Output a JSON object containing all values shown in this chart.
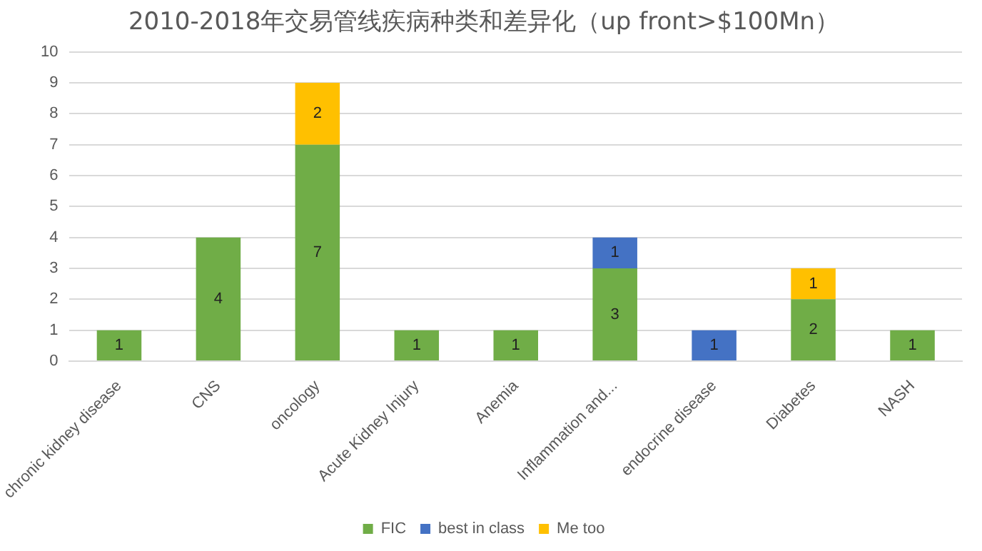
{
  "chart_data": {
    "type": "bar",
    "title": "2010-2018年交易管线疾病种类和差异化（up front>$100Mn）",
    "categories": [
      "chronic kidney disease",
      "CNS",
      "oncology",
      "Acute Kidney Injury",
      "Anemia",
      "Inflammation and...",
      "endocrine disease",
      "Diabetes",
      "NASH"
    ],
    "series": [
      {
        "name": "FIC",
        "color": "#70ad47",
        "values": [
          1,
          4,
          7,
          1,
          1,
          3,
          null,
          2,
          1
        ]
      },
      {
        "name": "best in class",
        "color": "#4472c4",
        "values": [
          null,
          null,
          null,
          null,
          null,
          1,
          1,
          null,
          null
        ]
      },
      {
        "name": "Me too",
        "color": "#ffc000",
        "values": [
          null,
          null,
          2,
          null,
          null,
          null,
          null,
          1,
          null
        ]
      }
    ],
    "stacked": true,
    "ylim": [
      0,
      10
    ],
    "yticks": [
      0,
      1,
      2,
      3,
      4,
      5,
      6,
      7,
      8,
      9,
      10
    ],
    "grid": "y",
    "legend": "bottom",
    "data_labels": true
  }
}
